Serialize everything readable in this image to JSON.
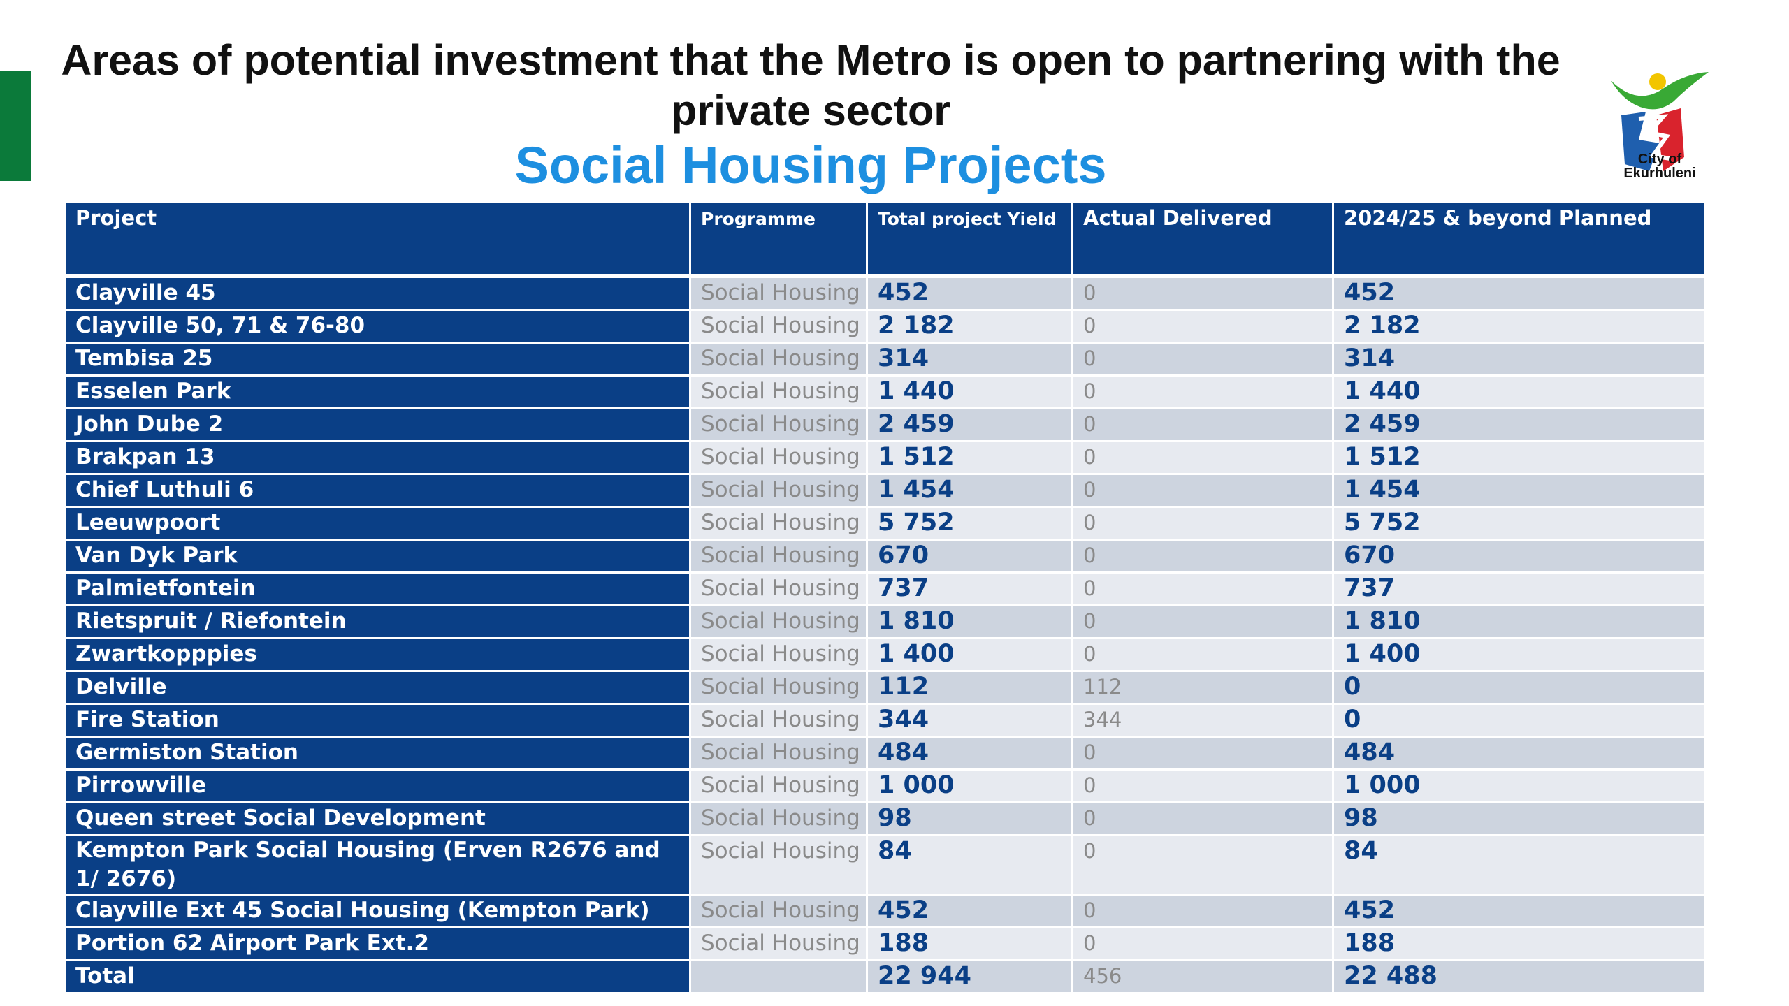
{
  "header": {
    "title": "Areas of potential investment that the Metro is open to partnering with the private sector",
    "subtitle": "Social Housing Projects"
  },
  "logo": {
    "text": "City of Ekurhuleni",
    "colors": {
      "green": "#39a935",
      "blue": "#1f5fae",
      "red": "#d9232d",
      "yellow": "#f2c500"
    }
  },
  "colors": {
    "header_bg": "#0a3f86",
    "accent_blue": "#1d8fe0",
    "side_bar_green": "#0b7a3a",
    "row_dark": "#cdd4df",
    "row_light": "#e7eaf0"
  },
  "table": {
    "columns": [
      "Project",
      "Programme",
      "Total project Yield",
      "Actual Delivered",
      "2024/25 & beyond Planned"
    ],
    "rows": [
      {
        "project": "Clayville 45",
        "programme": "Social Housing",
        "yield": "452",
        "delivered": "0",
        "planned": "452"
      },
      {
        "project": "Clayville 50, 71 & 76-80",
        "programme": "Social Housing",
        "yield": "2 182",
        "delivered": "0",
        "planned": "2 182"
      },
      {
        "project": "Tembisa 25",
        "programme": "Social Housing",
        "yield": "314",
        "delivered": "0",
        "planned": "314"
      },
      {
        "project": "Esselen Park",
        "programme": "Social Housing",
        "yield": "1 440",
        "delivered": "0",
        "planned": "1 440"
      },
      {
        "project": "John Dube 2",
        "programme": "Social Housing",
        "yield": "2 459",
        "delivered": "0",
        "planned": "2 459"
      },
      {
        "project": "Brakpan 13",
        "programme": "Social Housing",
        "yield": "1 512",
        "delivered": "0",
        "planned": "1 512"
      },
      {
        "project": "Chief Luthuli 6",
        "programme": "Social Housing",
        "yield": "1 454",
        "delivered": "0",
        "planned": "1 454"
      },
      {
        "project": "Leeuwpoort",
        "programme": "Social Housing",
        "yield": "5 752",
        "delivered": "0",
        "planned": "5 752"
      },
      {
        "project": "Van Dyk Park",
        "programme": "Social Housing",
        "yield": "670",
        "delivered": "0",
        "planned": "670"
      },
      {
        "project": "Palmietfontein",
        "programme": "Social Housing",
        "yield": "737",
        "delivered": "0",
        "planned": "737"
      },
      {
        "project": "Rietspruit / Riefontein",
        "programme": "Social Housing",
        "yield": "1 810",
        "delivered": "0",
        "planned": "1 810"
      },
      {
        "project": "Zwartkopppies",
        "programme": "Social Housing",
        "yield": "1 400",
        "delivered": "0",
        "planned": "1 400"
      },
      {
        "project": "Delville",
        "programme": "Social Housing",
        "yield": "112",
        "delivered": "112",
        "planned": "0"
      },
      {
        "project": "Fire Station",
        "programme": "Social Housing",
        "yield": "344",
        "delivered": "344",
        "planned": "0"
      },
      {
        "project": "Germiston Station",
        "programme": "Social Housing",
        "yield": "484",
        "delivered": "0",
        "planned": "484"
      },
      {
        "project": "Pirrowville",
        "programme": "Social Housing",
        "yield": "1 000",
        "delivered": "0",
        "planned": "1 000"
      },
      {
        "project": "Queen street Social Development",
        "programme": "Social Housing",
        "yield": "98",
        "delivered": "0",
        "planned": "98"
      },
      {
        "project": "Kempton Park Social Housing (Erven R2676 and 1/ 2676)",
        "programme": "Social Housing",
        "yield": "84",
        "delivered": "0",
        "planned": "84"
      },
      {
        "project": "Clayville Ext 45 Social Housing (Kempton Park)",
        "programme": "Social Housing",
        "yield": "452",
        "delivered": "0",
        "planned": "452"
      },
      {
        "project": "Portion 62 Airport Park Ext.2",
        "programme": "Social Housing",
        "yield": "188",
        "delivered": "0",
        "planned": "188"
      },
      {
        "project": "Total",
        "programme": "",
        "yield": "22 944",
        "delivered": "456",
        "planned": "22 488"
      }
    ]
  }
}
